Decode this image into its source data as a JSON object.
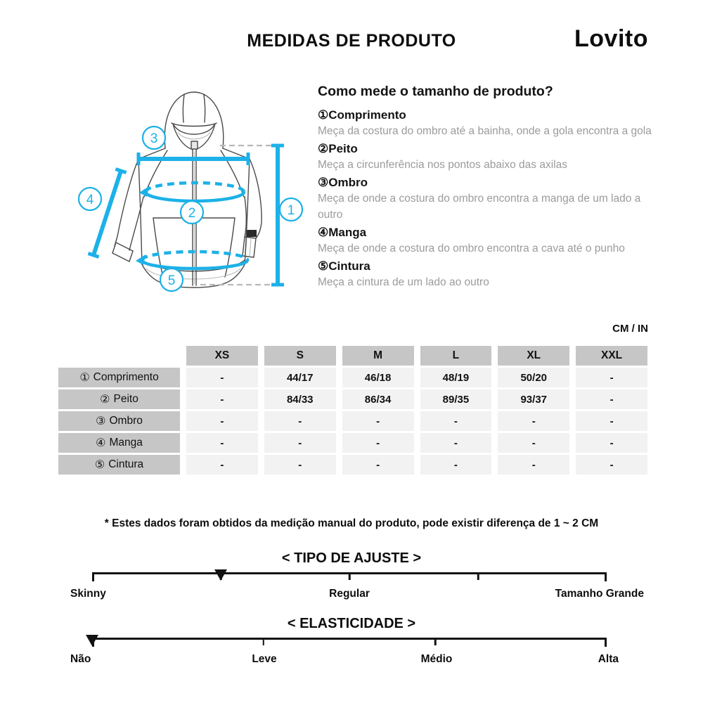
{
  "header": {
    "title": "MEDIDAS DE PRODUTO",
    "brand": "Lovito"
  },
  "guide": {
    "heading": "Como mede o tamanho de produto?",
    "items": [
      {
        "num": "①",
        "label": "Comprimento",
        "desc": "Meça da costura do ombro até a bainha, onde a gola encontra a gola"
      },
      {
        "num": "②",
        "label": "Peito",
        "desc": "Meça a circunferência nos pontos abaixo das axilas"
      },
      {
        "num": "③",
        "label": "Ombro",
        "desc": "Meça de onde a costura do ombro encontra a manga de um lado a outro"
      },
      {
        "num": "④",
        "label": "Manga",
        "desc": "Meça de onde a costura do ombro encontra a cava até o punho"
      },
      {
        "num": "⑤",
        "label": "Cintura",
        "desc": "Meça a cintura de um lado ao outro"
      }
    ]
  },
  "units_label": "CM / IN",
  "size_table": {
    "columns": [
      "XS",
      "S",
      "M",
      "L",
      "XL",
      "XXL"
    ],
    "rows": [
      {
        "num": "①",
        "label": "Comprimento",
        "values": [
          "-",
          "44/17",
          "46/18",
          "48/19",
          "50/20",
          "-"
        ]
      },
      {
        "num": "②",
        "label": "Peito",
        "values": [
          "-",
          "84/33",
          "86/34",
          "89/35",
          "93/37",
          "-"
        ]
      },
      {
        "num": "③",
        "label": "Ombro",
        "values": [
          "-",
          "-",
          "-",
          "-",
          "-",
          "-"
        ]
      },
      {
        "num": "④",
        "label": "Manga",
        "values": [
          "-",
          "-",
          "-",
          "-",
          "-",
          "-"
        ]
      },
      {
        "num": "⑤",
        "label": "Cintura",
        "values": [
          "-",
          "-",
          "-",
          "-",
          "-",
          "-"
        ]
      }
    ]
  },
  "footnote": "* Estes dados foram obtidos da medição manual do produto, pode existir diferença de 1 ~ 2 CM",
  "fit_scale": {
    "heading": "< TIPO DE AJUSTE >",
    "labels": [
      "Skinny",
      "Regular",
      "Tamanho Grande"
    ],
    "marker_position_pct": 25
  },
  "elasticity_scale": {
    "heading": "< ELASTICIDADE >",
    "labels": [
      "Não",
      "Leve",
      "Médio",
      "Alta"
    ],
    "marker_position_pct": 0
  },
  "diagram": {
    "marker_numbers": {
      "comprimento": "1",
      "peito": "2",
      "ombro": "3",
      "manga": "4",
      "cintura": "5"
    },
    "accent_color": "#1cb1e8"
  },
  "colors": {
    "accent": "#1cb1e8",
    "table_header_bg": "#c6c6c6",
    "table_cell_bg": "#f2f2f2",
    "muted_text": "#9b9b9b"
  }
}
